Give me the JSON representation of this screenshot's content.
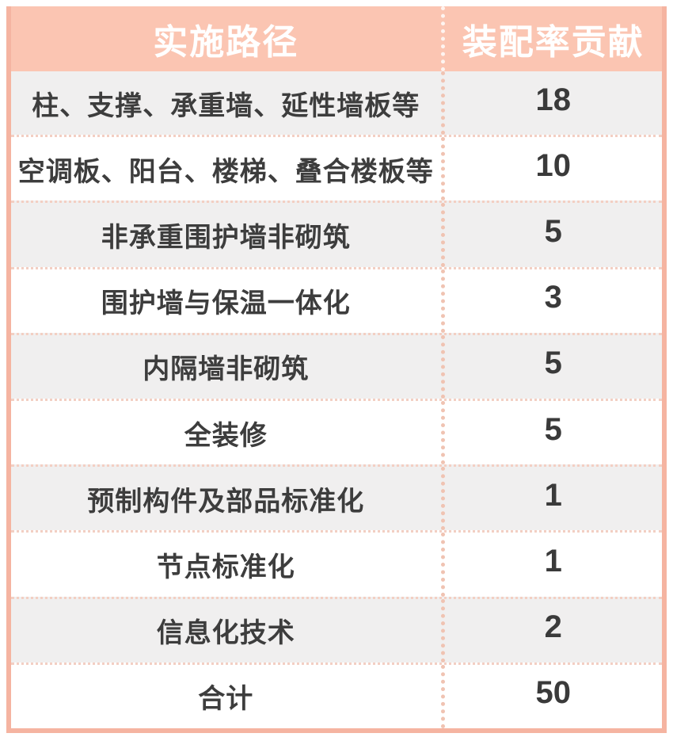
{
  "table": {
    "header": {
      "path": "实施路径",
      "contribution": "装配率贡献"
    },
    "rows": [
      {
        "path": "柱、支撑、承重墙、延性墙板等",
        "value": "18"
      },
      {
        "path": "空调板、阳台、楼梯、叠合楼板等",
        "value": "10"
      },
      {
        "path": "非承重围护墙非砌筑",
        "value": "5"
      },
      {
        "path": "围护墙与保温一体化",
        "value": "3"
      },
      {
        "path": "内隔墙非砌筑",
        "value": "5"
      },
      {
        "path": "全装修",
        "value": "5"
      },
      {
        "path": "预制构件及部品标准化",
        "value": "1"
      },
      {
        "path": "节点标准化",
        "value": "1"
      },
      {
        "path": "信息化技术",
        "value": "2"
      },
      {
        "path": "合计",
        "value": "50"
      }
    ],
    "colors": {
      "header_bg": "#fbc5b2",
      "header_text": "#ffffff",
      "frame_border": "#f5b4a1",
      "row_shade_bg": "#f0efef",
      "row_plain_bg": "#ffffff",
      "divider_dots": "#f3cfc3",
      "body_text": "#3d3d3d"
    }
  },
  "chart_data": {
    "type": "table",
    "title": "",
    "columns": [
      "实施路径",
      "装配率贡献"
    ],
    "rows": [
      [
        "柱、支撑、承重墙、延性墙板等",
        18
      ],
      [
        "空调板、阳台、楼梯、叠合楼板等",
        10
      ],
      [
        "非承重围护墙非砌筑",
        5
      ],
      [
        "围护墙与保温一体化",
        3
      ],
      [
        "内隔墙非砌筑",
        5
      ],
      [
        "全装修",
        5
      ],
      [
        "预制构件及部品标准化",
        1
      ],
      [
        "节点标准化",
        1
      ],
      [
        "信息化技术",
        2
      ],
      [
        "合计",
        50
      ]
    ]
  }
}
